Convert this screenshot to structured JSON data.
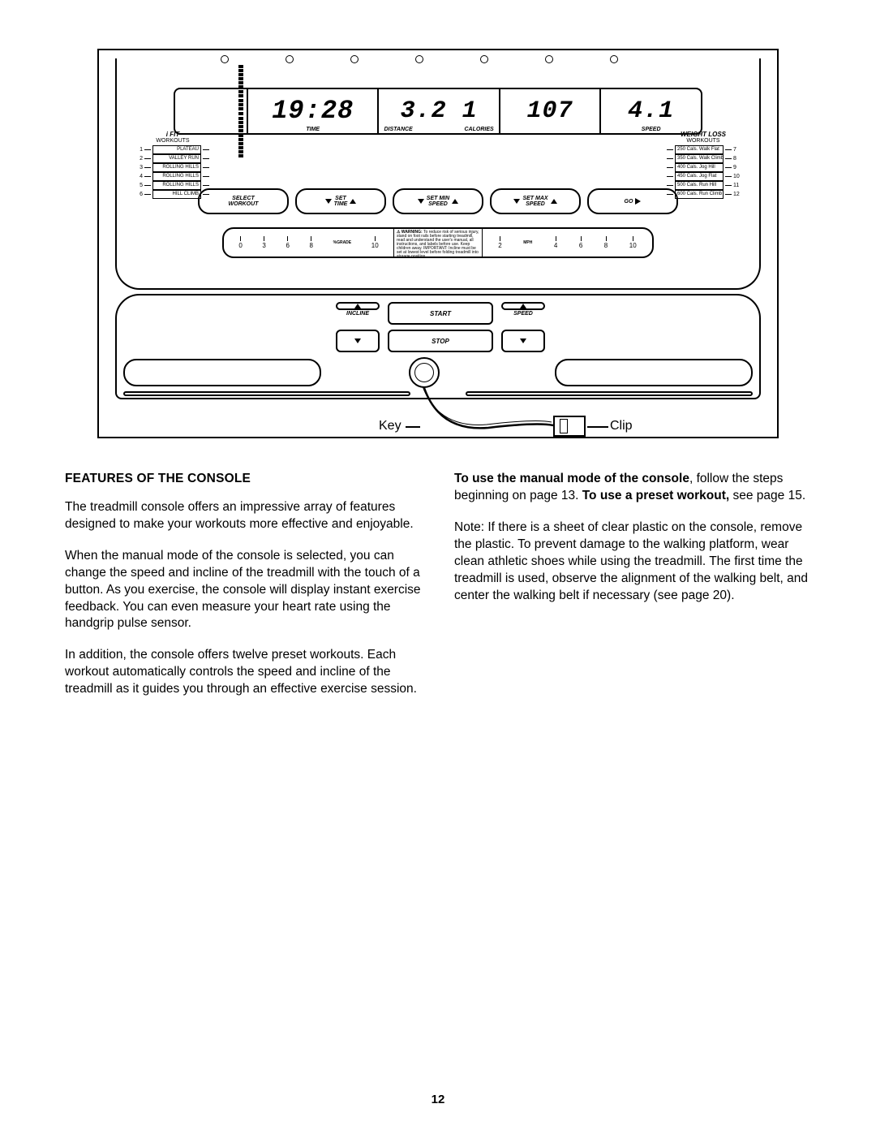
{
  "diagram": {
    "display": {
      "time_value": "19:28",
      "time_label": "TIME",
      "distance_value": "3.2 1",
      "distance_label": "DISTANCE",
      "calories_value": "107",
      "calories_label": "CALORIES",
      "speed_value": "4.1",
      "speed_label": "SPEED"
    },
    "ifit": {
      "title": "i FIT",
      "subtitle": "WORKOUTS",
      "items": [
        {
          "n": "1",
          "label": "PLATEAU"
        },
        {
          "n": "2",
          "label": "VALLEY RUN"
        },
        {
          "n": "3",
          "label": "ROLLING HILLS"
        },
        {
          "n": "4",
          "label": "ROLLING HILLS"
        },
        {
          "n": "5",
          "label": "ROLLING HILLS"
        },
        {
          "n": "6",
          "label": "HILL CLIMB"
        }
      ]
    },
    "weightloss": {
      "title": "WEIGHT LOSS",
      "subtitle": "WORKOUTS",
      "items": [
        {
          "n": "7",
          "label": "250 Cals. Walk Flat"
        },
        {
          "n": "8",
          "label": "350 Cals. Walk Climb"
        },
        {
          "n": "9",
          "label": "400 Cals. Jog Hill"
        },
        {
          "n": "10",
          "label": "450 Cals. Jog Flat"
        },
        {
          "n": "11",
          "label": "500 Cals. Run Hill"
        },
        {
          "n": "12",
          "label": "600 Cals. Run Climb"
        }
      ]
    },
    "buttons": {
      "select_workout": "SELECT\nWORKOUT",
      "set_time": "SET\nTIME",
      "set_min_speed": "SET MIN\nSPEED",
      "set_max_speed": "SET MAX\nSPEED",
      "go": "GO"
    },
    "scale": {
      "grade_values": [
        "0",
        "3",
        "6",
        "8",
        "10"
      ],
      "grade_unit": "%GRADE",
      "mph_values": [
        "2",
        "4",
        "6",
        "8",
        "10"
      ],
      "mph_unit": "MPH",
      "warning_heading": "⚠ WARNING:",
      "warning_body": "To reduce risk of serious injury, stand on foot rails before starting treadmill, read and understand the user's manual, all instructions, and labels before use. Keep children away. IMPORTANT: Incline must be set at lowest level before folding treadmill into storage position."
    },
    "controls": {
      "incline_label": "INCLINE",
      "speed_label": "SPEED",
      "start_label": "START",
      "stop_label": "STOP"
    },
    "callouts": {
      "key": "Key",
      "clip": "Clip"
    }
  },
  "text": {
    "section_title": "FEATURES OF THE CONSOLE",
    "left_p1": "The treadmill console offers an impressive array of features designed to make your workouts more effective and enjoyable.",
    "left_p2": "When the manual mode of the console is selected, you can change the speed and incline of the treadmill with the touch of a button. As you exercise, the console will display instant exercise feedback. You can even measure your heart rate using the handgrip pulse sensor.",
    "left_p3": "In addition, the console offers twelve preset workouts. Each workout automatically controls the speed and incline of the treadmill as it guides you through an effective exercise session.",
    "right_p1_bold1": "To use the manual mode of the console",
    "right_p1_mid": ", follow the steps beginning on page 13. ",
    "right_p1_bold2": "To use a preset workout,",
    "right_p1_tail": " see page 15.",
    "right_p2": "Note: If there is a sheet of clear plastic on the console, remove the plastic. To prevent damage to the walking platform, wear clean athletic shoes while using the treadmill. The first time the treadmill is used, observe the alignment of the walking belt, and center the walking belt if necessary (see page 20)."
  },
  "page_number": "12"
}
